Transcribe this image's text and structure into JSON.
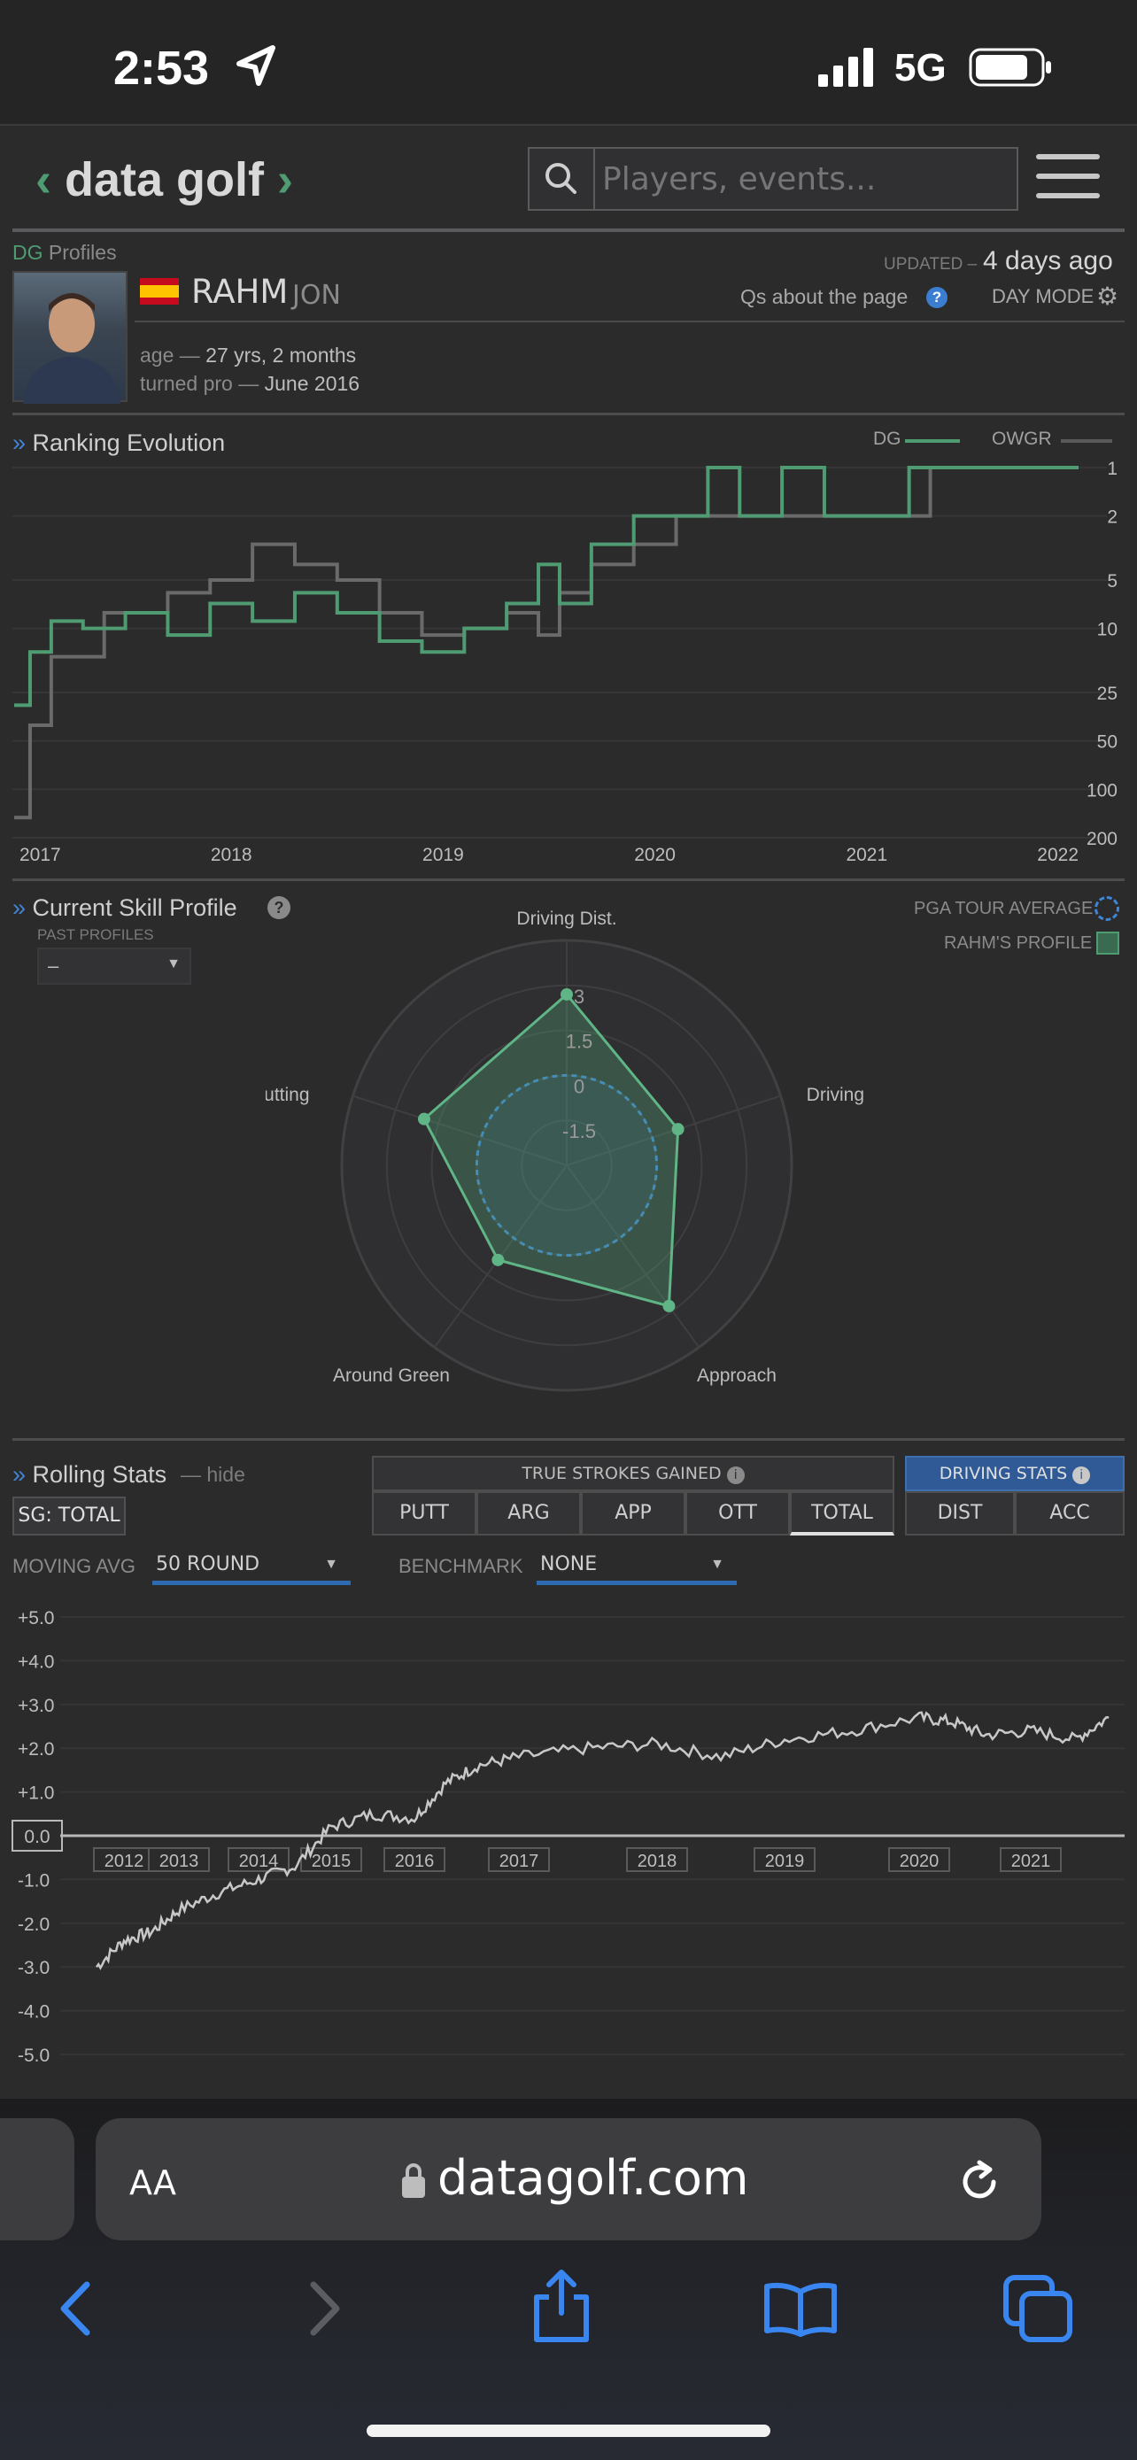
{
  "status": {
    "time": "2:53",
    "network": "5G"
  },
  "header": {
    "logo": "data golf",
    "search_placeholder": "Players, events..."
  },
  "profile": {
    "section_label_dg": "DG",
    "section_label_rest": "Profiles",
    "updated_label": "UPDATED –",
    "updated_value": "4 days ago",
    "qs_link": "Qs about the page",
    "day_mode": "DAY MODE",
    "last_name": "RAHM",
    "first_name": "JON",
    "age_label": "age —",
    "age_value": "27 yrs, 2 months",
    "turned_pro_label": "turned pro —",
    "turned_pro_value": "June 2016"
  },
  "ranking": {
    "title": "Ranking Evolution",
    "legend_dg": "DG",
    "legend_owgr": "OWGR",
    "colors": {
      "dg": "#4f9c73",
      "owgr": "#6a6a6a"
    }
  },
  "skill": {
    "title": "Current Skill Profile",
    "past_profiles_label": "PAST PROFILES",
    "past_profiles_value": "–",
    "legend_avg": "PGA TOUR AVERAGE",
    "legend_player": "RAHM'S PROFILE"
  },
  "rolling": {
    "title": "Rolling Stats",
    "hide": "— hide",
    "sg_badge": "SG: TOTAL",
    "tsg_header": "TRUE STROKES GAINED",
    "tabs": [
      "PUTT",
      "ARG",
      "APP",
      "OTT",
      "TOTAL"
    ],
    "active_tab": "TOTAL",
    "driving_header": "DRIVING STATS",
    "driving_tabs": [
      "DIST",
      "ACC"
    ],
    "moving_avg_label": "MOVING AVG",
    "moving_avg_value": "50 ROUND",
    "benchmark_label": "BENCHMARK",
    "benchmark_value": "NONE"
  },
  "browser": {
    "aa": "AA",
    "url": "datagolf.com"
  },
  "chart_data": [
    {
      "type": "line",
      "title": "Ranking Evolution",
      "x_ticks": [
        "2017",
        "2018",
        "2019",
        "2020",
        "2021",
        "2022"
      ],
      "y_ticks": [
        "1",
        "2",
        "5",
        "10",
        "25",
        "50",
        "100",
        "200"
      ],
      "y_scale": "log, inverted",
      "xlim": [
        2017,
        2022
      ],
      "ylim": [
        200,
        1
      ],
      "series": [
        {
          "name": "DG",
          "step": true,
          "x": [
            2016.95,
            2017.05,
            2017.15,
            2017.3,
            2017.5,
            2017.7,
            2017.9,
            2018.1,
            2018.3,
            2018.5,
            2018.7,
            2018.9,
            2019.1,
            2019.3,
            2019.45,
            2019.55,
            2019.7,
            2019.9,
            2020.1,
            2020.25,
            2020.4,
            2020.6,
            2020.8,
            2021.0,
            2021.2,
            2021.5,
            2021.8,
            2022.0
          ],
          "values": [
            30,
            14,
            9,
            10,
            8,
            11,
            7,
            9,
            6,
            8,
            12,
            14,
            10,
            7,
            4,
            7,
            3,
            2,
            2,
            1,
            2,
            1,
            2,
            2,
            1,
            1,
            1,
            1
          ]
        },
        {
          "name": "OWGR",
          "step": true,
          "x": [
            2016.95,
            2017.05,
            2017.15,
            2017.4,
            2017.7,
            2017.9,
            2018.1,
            2018.3,
            2018.5,
            2018.7,
            2018.9,
            2019.1,
            2019.3,
            2019.45,
            2019.55,
            2019.7,
            2019.9,
            2020.1,
            2020.3,
            2020.5,
            2020.7,
            2020.9,
            2021.1,
            2021.3,
            2021.5,
            2021.7,
            2022.0
          ],
          "values": [
            150,
            40,
            15,
            8,
            6,
            5,
            3,
            4,
            5,
            8,
            11,
            10,
            8,
            11,
            6,
            4,
            3,
            2,
            2,
            2,
            2,
            2,
            2,
            1,
            1,
            1,
            1
          ]
        }
      ]
    },
    {
      "type": "radar",
      "title": "Current Skill Profile",
      "categories": [
        "Driving Dist.",
        "Driving Acc",
        "Approach",
        "Around Green",
        "Putting"
      ],
      "r_ticks": [
        "3",
        "1.5",
        "0",
        "-1.5"
      ],
      "rlim": [
        -3,
        4.5
      ],
      "series": [
        {
          "name": "RAHM'S PROFILE",
          "values": [
            2.7,
            0.9,
            2.8,
            0.9,
            2.0
          ]
        },
        {
          "name": "PGA TOUR AVERAGE",
          "values": [
            0,
            0,
            0,
            0,
            0
          ]
        }
      ]
    },
    {
      "type": "line",
      "title": "Rolling Stats",
      "x_ticks": [
        "2012",
        "2013",
        "2014",
        "2015",
        "2016",
        "2017",
        "2018",
        "2019",
        "2020",
        "2021"
      ],
      "y_ticks": [
        "+5.0",
        "+4.0",
        "+3.0",
        "+2.0",
        "+1.0",
        "0.0",
        "-1.0",
        "-2.0",
        "-3.0",
        "-4.0",
        "-5.0"
      ],
      "ylim": [
        -5,
        5
      ],
      "series": [
        {
          "name": "SG: TOTAL",
          "x": [
            2011.5,
            2012.0,
            2012.5,
            2013.0,
            2013.5,
            2014.0,
            2014.5,
            2015.0,
            2015.5,
            2016.0,
            2016.3,
            2016.6,
            2017.0,
            2017.5,
            2018.0,
            2018.5,
            2019.0,
            2019.5,
            2020.0,
            2020.3,
            2020.6,
            2021.0,
            2021.4,
            2021.7
          ],
          "values": [
            -3.0,
            -2.4,
            -2.2,
            -1.7,
            -1.3,
            -1.0,
            -0.7,
            0.2,
            0.5,
            0.4,
            1.2,
            1.6,
            1.8,
            2.0,
            2.1,
            1.8,
            2.2,
            2.4,
            2.7,
            2.6,
            2.3,
            2.4,
            2.2,
            2.7
          ]
        }
      ]
    }
  ]
}
